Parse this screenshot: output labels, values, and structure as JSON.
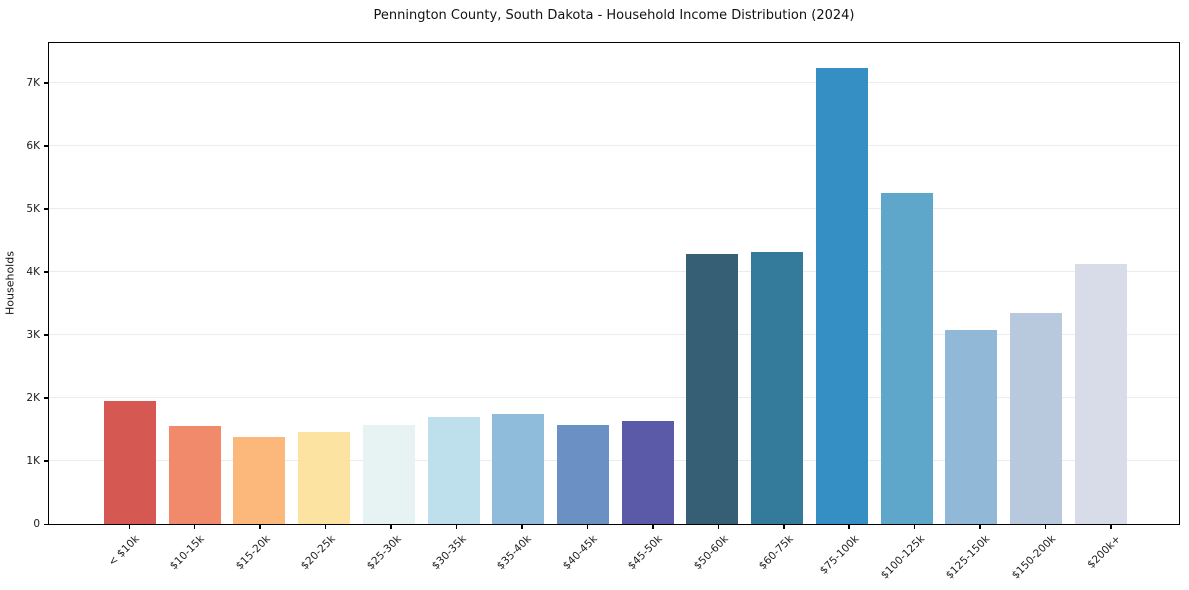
{
  "chart_data": {
    "type": "bar",
    "title": "Pennington County, South Dakota - Household Income Distribution (2024)",
    "xlabel": "",
    "ylabel": "Households",
    "categories": [
      "< $10k",
      "$10-15k",
      "$15-20k",
      "$20-25k",
      "$25-30k",
      "$30-35k",
      "$35-40k",
      "$40-45k",
      "$45-50k",
      "$50-60k",
      "$60-75k",
      "$75-100k",
      "$100-125k",
      "$125-150k",
      "$150-200k",
      "$200k+"
    ],
    "values": [
      1950,
      1550,
      1380,
      1460,
      1570,
      1700,
      1750,
      1570,
      1640,
      4290,
      4310,
      7230,
      5250,
      3070,
      3350,
      4120
    ],
    "bar_colors": [
      "#d65852",
      "#f18a6b",
      "#fbb87a",
      "#fde3a2",
      "#e7f3f2",
      "#bee0ec",
      "#90bcdb",
      "#6a90c4",
      "#5a5aa8",
      "#365f76",
      "#347a9a",
      "#368fc4",
      "#5ea7cb",
      "#92b8d8",
      "#b8c9de",
      "#d8dbe8"
    ],
    "ylim": [
      0,
      7630
    ],
    "yticks": [
      {
        "value": 0,
        "label": "0"
      },
      {
        "value": 1000,
        "label": "1K"
      },
      {
        "value": 2000,
        "label": "2K"
      },
      {
        "value": 3000,
        "label": "3K"
      },
      {
        "value": 4000,
        "label": "4K"
      },
      {
        "value": 5000,
        "label": "5K"
      },
      {
        "value": 6000,
        "label": "6K"
      },
      {
        "value": 7000,
        "label": "7K"
      }
    ],
    "grid": "horizontal",
    "legend_position": "none",
    "background_color": "#ffffff",
    "gridline_color": "#ececec",
    "spine_color": "#000000"
  }
}
